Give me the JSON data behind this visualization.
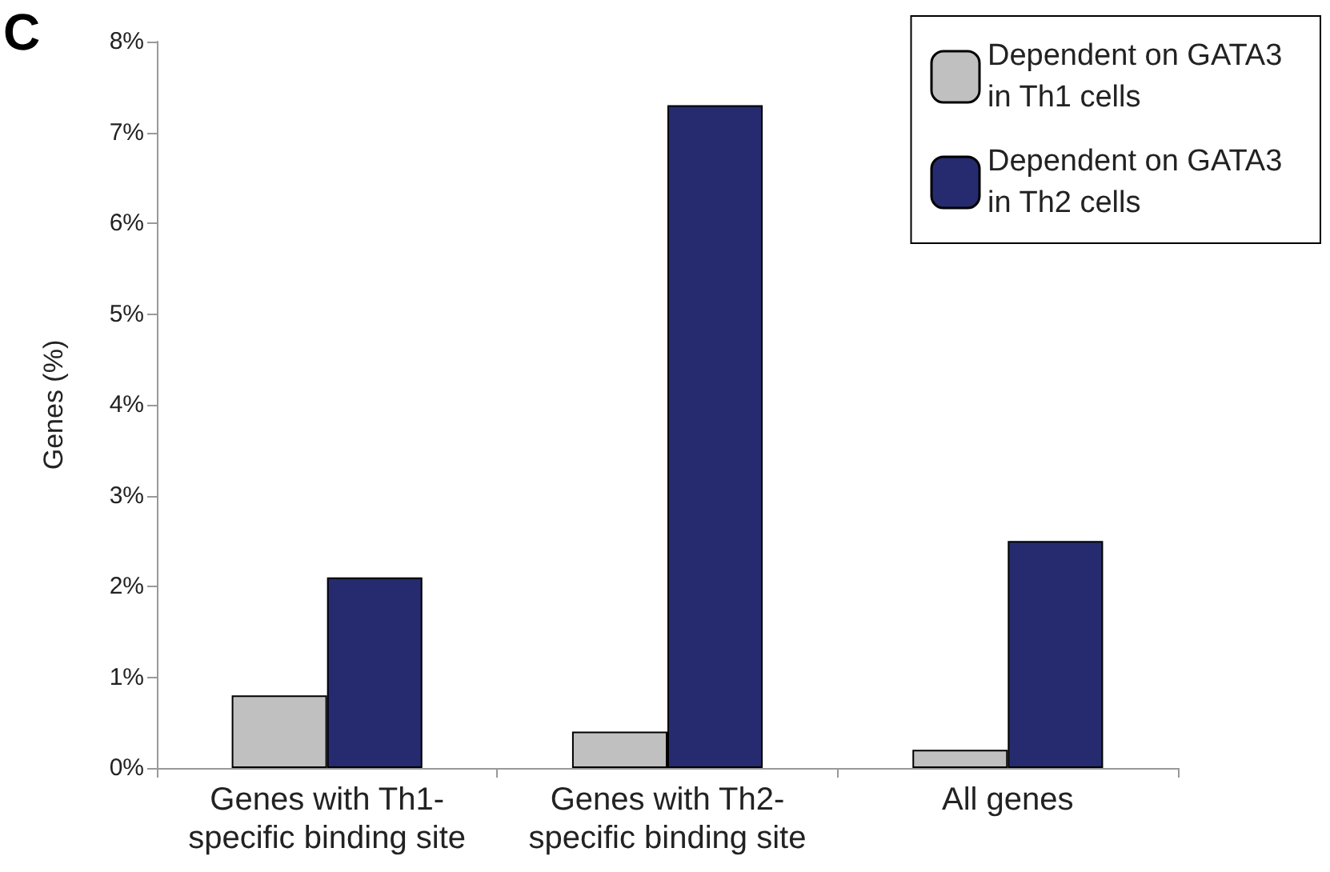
{
  "chart_data": {
    "type": "bar",
    "ylabel": "Genes (%)",
    "annotations": [
      "C"
    ],
    "categories": [
      "Genes with Th1-\nspecific binding site",
      "Genes with Th2-\nspecific binding site",
      "All genes"
    ],
    "series": [
      {
        "name": "Dependent on GATA3 in Th1 cells",
        "color": "#c0c0c0",
        "values": [
          0.8,
          0.4,
          0.2
        ]
      },
      {
        "name": "Dependent on GATA3 in Th2 cells",
        "color": "#252b6e",
        "values": [
          2.1,
          7.3,
          2.5
        ]
      }
    ],
    "ylim": [
      0,
      8
    ],
    "yticks": [
      {
        "value": 0,
        "label": "0%"
      },
      {
        "value": 1,
        "label": "1%"
      },
      {
        "value": 2,
        "label": "2%"
      },
      {
        "value": 3,
        "label": "3%"
      },
      {
        "value": 4,
        "label": "4%"
      },
      {
        "value": 5,
        "label": "5%"
      },
      {
        "value": 6,
        "label": "6%"
      },
      {
        "value": 7,
        "label": "7%"
      },
      {
        "value": 8,
        "label": "8%"
      }
    ],
    "grid": false,
    "legend": "top right"
  }
}
